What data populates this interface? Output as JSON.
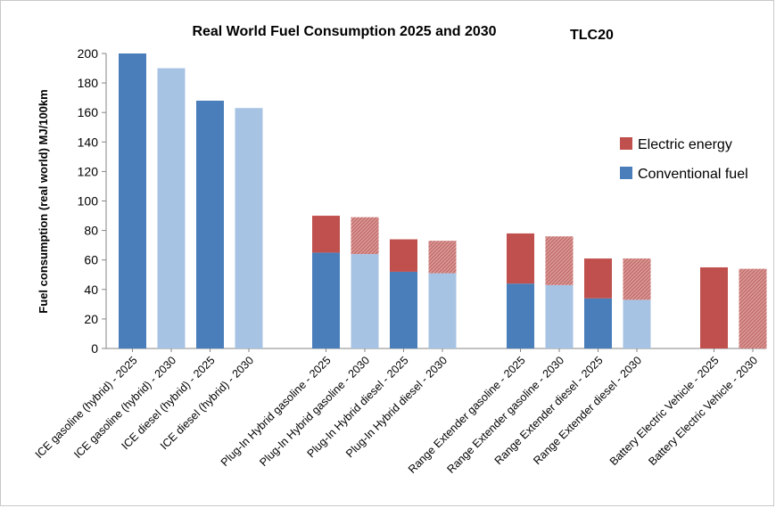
{
  "chart_data": {
    "type": "bar",
    "stacked": true,
    "title": "Real World Fuel Consumption 2025 and 2030",
    "subtitle": "TLC20",
    "ylabel": "Fuel consumption (real world) MJ/100km",
    "xlabel": "",
    "ylim": [
      0,
      200
    ],
    "yticks": [
      0,
      20,
      40,
      60,
      80,
      100,
      120,
      140,
      160,
      180,
      200
    ],
    "grid": false,
    "legend_position": "right",
    "categories": [
      "ICE gasoline (hybrid) - 2025",
      "ICE gasoline (hybrid) - 2030",
      "ICE diesel (hybrid) - 2025",
      "ICE diesel (hybrid) - 2030",
      "Plug-In Hybrid gasoline - 2025",
      "Plug-In Hybrid gasoline - 2030",
      "Plug-In Hybrid diesel - 2025",
      "Plug-In Hybrid diesel - 2030",
      "Range Extender gasoline - 2025",
      "Range Extender gasoline - 2030",
      "Range Extender diesel - 2025",
      "Range Extender diesel - 2030",
      "Battery Electric Vehicle - 2025",
      "Battery Electric Vehicle - 2030"
    ],
    "groups": [
      [
        0,
        1,
        2,
        3
      ],
      [
        4,
        5,
        6,
        7
      ],
      [
        8,
        9,
        10,
        11
      ],
      [
        12,
        13
      ]
    ],
    "series": [
      {
        "name": "Conventional fuel",
        "color_2025": "#4a7ebb",
        "color_2030": "#a7c3e3",
        "values": [
          200,
          190,
          168,
          163,
          65,
          64,
          52,
          51,
          44,
          43,
          34,
          33,
          0,
          0
        ]
      },
      {
        "name": "Electric energy",
        "color_2025": "#c0504d",
        "color_2030": "#d99795",
        "values": [
          0,
          0,
          0,
          0,
          25,
          25,
          22,
          22,
          34,
          33,
          27,
          28,
          55,
          54
        ]
      }
    ],
    "legend": [
      {
        "label": "Electric energy",
        "color": "#c0504d"
      },
      {
        "label": "Conventional fuel",
        "color": "#4a7ebb"
      }
    ]
  }
}
